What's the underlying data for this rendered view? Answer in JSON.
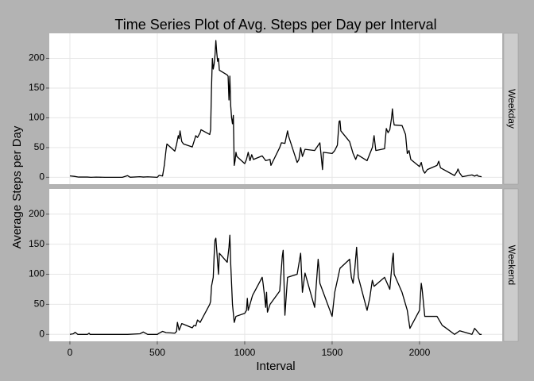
{
  "title": "Time Series Plot of Avg. Steps per Day per Interval",
  "x_label": "Interval",
  "y_label": "Average Steps per Day",
  "chart_data": [
    {
      "type": "line",
      "facet": "Weekday",
      "color": "#000000",
      "xlim": [
        -118,
        2473
      ],
      "ylim": [
        -11.5,
        242
      ],
      "xticks": [
        0,
        500,
        1000,
        1500,
        2000
      ],
      "yticks": [
        0,
        50,
        100,
        150,
        200
      ],
      "grid": true,
      "x": [
        0,
        25,
        50,
        100,
        120,
        150,
        200,
        245,
        300,
        330,
        345,
        400,
        420,
        445,
        500,
        510,
        530,
        540,
        550,
        555,
        600,
        610,
        620,
        625,
        630,
        640,
        650,
        700,
        715,
        720,
        730,
        745,
        750,
        800,
        805,
        810,
        815,
        820,
        825,
        830,
        835,
        840,
        845,
        850,
        855,
        900,
        905,
        910,
        915,
        920,
        925,
        930,
        935,
        940,
        945,
        950,
        955,
        1000,
        1010,
        1020,
        1030,
        1040,
        1050,
        1100,
        1120,
        1145,
        1150,
        1200,
        1210,
        1230,
        1245,
        1250,
        1300,
        1310,
        1320,
        1330,
        1345,
        1400,
        1430,
        1445,
        1450,
        1500,
        1515,
        1530,
        1540,
        1545,
        1550,
        1600,
        1620,
        1635,
        1645,
        1700,
        1730,
        1740,
        1750,
        1800,
        1810,
        1820,
        1830,
        1840,
        1845,
        1850,
        1855,
        1900,
        1920,
        1930,
        1940,
        1950,
        2000,
        2010,
        2020,
        2030,
        2045,
        2100,
        2110,
        2120,
        2200,
        2215,
        2220,
        2230,
        2245,
        2300,
        2315,
        2330,
        2335,
        2355
      ],
      "values": [
        2.3,
        1.6,
        0.4,
        0.4,
        0,
        0.3,
        0,
        0,
        0,
        2.8,
        0.1,
        1,
        0.4,
        0.8,
        0,
        3.3,
        2.2,
        20,
        46,
        56,
        44,
        55,
        70,
        65,
        78,
        60,
        56,
        51,
        65,
        70,
        67,
        75,
        80,
        72,
        80,
        150,
        200,
        182,
        190,
        205,
        230,
        210,
        195,
        200,
        180,
        172,
        170,
        130,
        170,
        120,
        100,
        90,
        104,
        20,
        28,
        42,
        35,
        23,
        30,
        42,
        28,
        38,
        30,
        36,
        28,
        30,
        20,
        50,
        58,
        57,
        78,
        70,
        25,
        30,
        50,
        35,
        47,
        45,
        58,
        13,
        42,
        40,
        45,
        54,
        94,
        95,
        78,
        60,
        40,
        30,
        38,
        28,
        50,
        70,
        45,
        48,
        82,
        75,
        80,
        100,
        115,
        98,
        88,
        87,
        72,
        40,
        45,
        30,
        18,
        25,
        12,
        7,
        13,
        20,
        27,
        16,
        3,
        10,
        14,
        7,
        1,
        4,
        2,
        4,
        2,
        1
      ]
    },
    {
      "type": "line",
      "facet": "Weekend",
      "color": "#000000",
      "xlim": [
        -118,
        2473
      ],
      "ylim": [
        -11.5,
        242
      ],
      "xticks": [
        0,
        500,
        1000,
        1500,
        2000
      ],
      "yticks": [
        0,
        50,
        100,
        150,
        200
      ],
      "grid": true,
      "x": [
        0,
        20,
        30,
        45,
        100,
        110,
        115,
        200,
        300,
        330,
        400,
        420,
        445,
        500,
        510,
        530,
        550,
        600,
        610,
        615,
        625,
        640,
        700,
        710,
        720,
        730,
        745,
        800,
        805,
        810,
        820,
        825,
        830,
        835,
        840,
        845,
        850,
        855,
        900,
        910,
        915,
        920,
        930,
        940,
        950,
        1000,
        1010,
        1015,
        1020,
        1030,
        1040,
        1045,
        1100,
        1105,
        1115,
        1120,
        1125,
        1130,
        1145,
        1200,
        1210,
        1215,
        1220,
        1230,
        1245,
        1300,
        1320,
        1330,
        1345,
        1400,
        1420,
        1425,
        1430,
        1500,
        1515,
        1530,
        1545,
        1600,
        1610,
        1620,
        1630,
        1640,
        1650,
        1700,
        1715,
        1730,
        1740,
        1800,
        1830,
        1845,
        1850,
        1855,
        1900,
        1930,
        1945,
        2000,
        2010,
        2015,
        2030,
        2100,
        2130,
        2145,
        2200,
        2230,
        2300,
        2315,
        2330,
        2345,
        2355
      ],
      "values": [
        0,
        1,
        3.5,
        0,
        0,
        2,
        0,
        0,
        0,
        0,
        1,
        4,
        0,
        0,
        2,
        5,
        3,
        2,
        5,
        20,
        7,
        18,
        11,
        15,
        14,
        24,
        20,
        50,
        55,
        80,
        95,
        130,
        157,
        160,
        140,
        120,
        100,
        135,
        120,
        145,
        165,
        117,
        50,
        20,
        30,
        35,
        40,
        60,
        40,
        50,
        60,
        65,
        95,
        85,
        60,
        45,
        70,
        37,
        50,
        72,
        110,
        130,
        140,
        32,
        95,
        100,
        135,
        70,
        102,
        45,
        125,
        110,
        85,
        30,
        70,
        90,
        110,
        125,
        95,
        85,
        110,
        145,
        95,
        40,
        60,
        90,
        80,
        95,
        75,
        125,
        135,
        100,
        70,
        40,
        10,
        40,
        85,
        75,
        30,
        30,
        15,
        12,
        0,
        6,
        0,
        10,
        5,
        0,
        0
      ]
    }
  ]
}
